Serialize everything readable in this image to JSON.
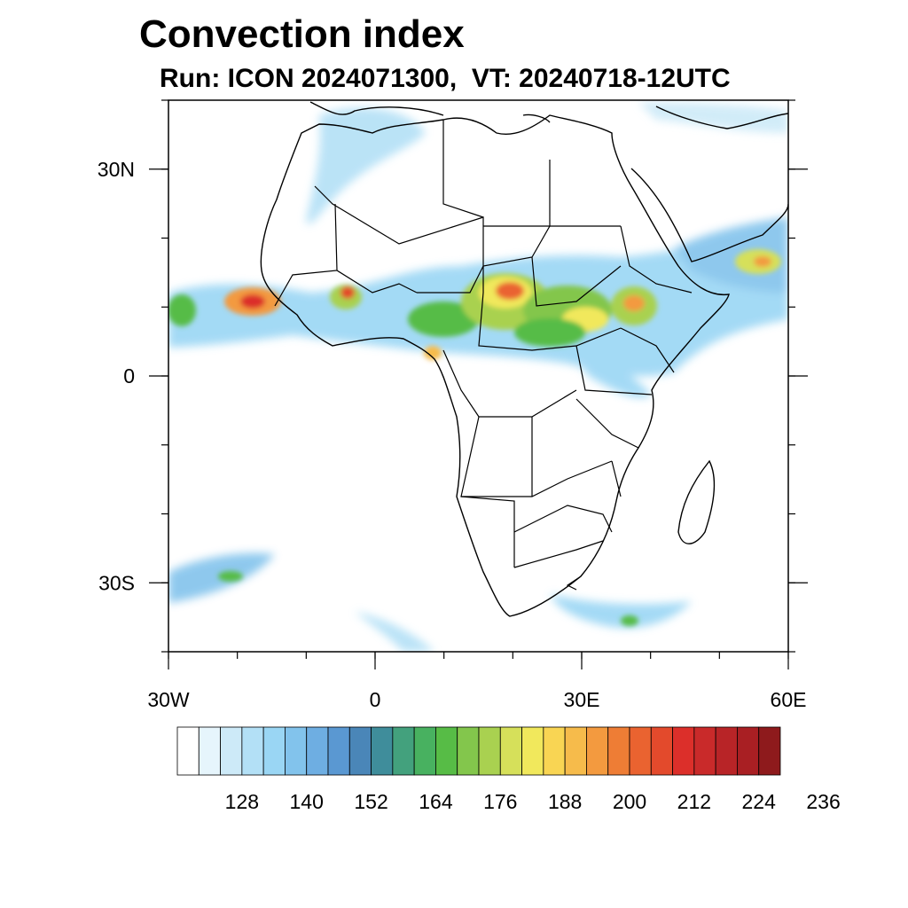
{
  "header": {
    "title": "Convection index",
    "subtitle": "Run: ICON 2024071300,  VT: 20240718-12UTC"
  },
  "map": {
    "region": "Africa",
    "lon_range": [
      -30,
      60
    ],
    "lat_range": [
      -40,
      40
    ],
    "lon_ticks": [
      {
        "value": -30,
        "label": "30W"
      },
      {
        "value": 0,
        "label": "0"
      },
      {
        "value": 30,
        "label": "30E"
      },
      {
        "value": 60,
        "label": "60E"
      }
    ],
    "lat_ticks": [
      {
        "value": 30,
        "label": "30N"
      },
      {
        "value": 0,
        "label": "0"
      },
      {
        "value": -30,
        "label": "30S"
      }
    ],
    "minor_lon_step": 10,
    "minor_lat_step": 10
  },
  "colorbar": {
    "labels": [
      "128",
      "140",
      "152",
      "164",
      "176",
      "188",
      "200",
      "212",
      "224",
      "236"
    ],
    "colors": [
      "#ffffff",
      "#e6f5fc",
      "#cdeaf8",
      "#b3e0f6",
      "#9ad6f4",
      "#82c3ec",
      "#6eaee2",
      "#5a98d2",
      "#4a86b8",
      "#3f8d9b",
      "#43a17d",
      "#48b160",
      "#57bc46",
      "#83c64c",
      "#a9d150",
      "#d6e05a",
      "#f1e85c",
      "#f9d553",
      "#f6bb4b",
      "#f39a3f",
      "#ee7d35",
      "#ea6330",
      "#e34a2c",
      "#dc2f2a",
      "#c92a2a",
      "#b82427",
      "#a91f23",
      "#8e1a1c"
    ]
  }
}
